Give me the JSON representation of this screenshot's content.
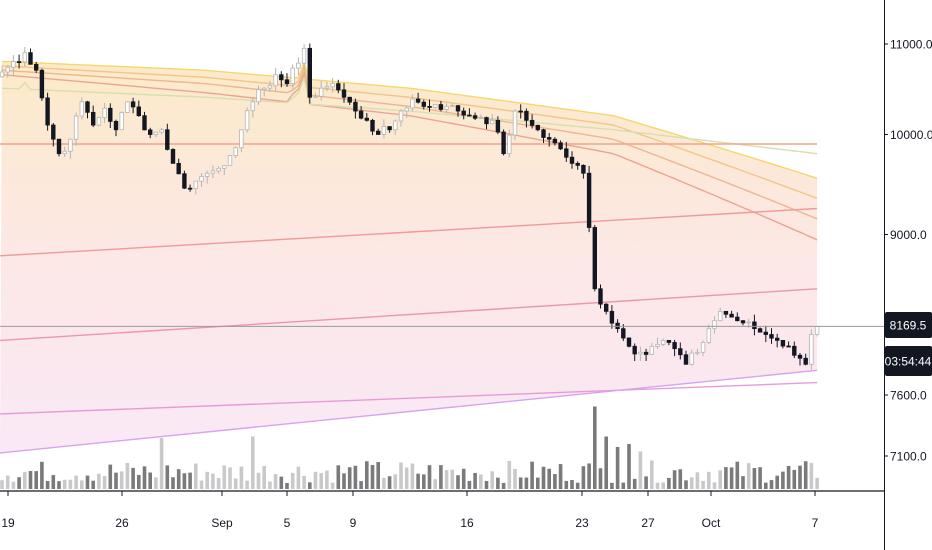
{
  "chart_data": {
    "type": "candlestick",
    "title": "",
    "y_axis": {
      "scale": "log",
      "range": [
        6500,
        12200
      ],
      "tick_labels": [
        "11000.0",
        "10000.0",
        "9000.0",
        "7600.0",
        "7100.0"
      ],
      "tick_values": [
        11000,
        10000,
        9000,
        7600,
        7100
      ]
    },
    "x_axis": {
      "tick_labels": [
        "19",
        "26",
        "Sep",
        "5",
        "9",
        "16",
        "23",
        "27",
        "Oct",
        "7"
      ]
    },
    "last_price": "8169.5",
    "countdown": "03:54:44",
    "anchors": [
      [
        0,
        10680
      ],
      [
        4,
        10900
      ],
      [
        6,
        10700
      ],
      [
        8,
        10100
      ],
      [
        10,
        9800
      ],
      [
        12,
        9950
      ],
      [
        14,
        10350
      ],
      [
        16,
        10100
      ],
      [
        18,
        10280
      ],
      [
        20,
        10050
      ],
      [
        22,
        10350
      ],
      [
        24,
        10200
      ],
      [
        26,
        10000
      ],
      [
        28,
        10050
      ],
      [
        30,
        9700
      ],
      [
        32,
        9450
      ],
      [
        34,
        9520
      ],
      [
        36,
        9600
      ],
      [
        38,
        9650
      ],
      [
        40,
        9780
      ],
      [
        42,
        10050
      ],
      [
        44,
        10350
      ],
      [
        46,
        10500
      ],
      [
        48,
        10650
      ],
      [
        50,
        10550
      ],
      [
        52,
        10780
      ],
      [
        53,
        10950
      ],
      [
        54,
        10400
      ],
      [
        56,
        10500
      ],
      [
        58,
        10550
      ],
      [
        60,
        10400
      ],
      [
        62,
        10250
      ],
      [
        64,
        10150
      ],
      [
        66,
        10000
      ],
      [
        68,
        10050
      ],
      [
        70,
        10250
      ],
      [
        72,
        10380
      ],
      [
        74,
        10300
      ],
      [
        76,
        10320
      ],
      [
        78,
        10300
      ],
      [
        80,
        10250
      ],
      [
        82,
        10200
      ],
      [
        84,
        10180
      ],
      [
        86,
        10150
      ],
      [
        88,
        9800
      ],
      [
        90,
        10250
      ],
      [
        92,
        10150
      ],
      [
        94,
        10050
      ],
      [
        96,
        9950
      ],
      [
        98,
        9850
      ],
      [
        100,
        9700
      ],
      [
        102,
        9600
      ],
      [
        104,
        8500
      ],
      [
        106,
        8300
      ],
      [
        108,
        8150
      ],
      [
        110,
        8000
      ],
      [
        112,
        7950
      ],
      [
        114,
        8000
      ],
      [
        116,
        8050
      ],
      [
        118,
        7980
      ],
      [
        120,
        7850
      ],
      [
        122,
        7950
      ],
      [
        124,
        8150
      ],
      [
        126,
        8300
      ],
      [
        128,
        8250
      ],
      [
        130,
        8200
      ],
      [
        132,
        8150
      ],
      [
        134,
        8100
      ],
      [
        136,
        8050
      ],
      [
        138,
        8000
      ],
      [
        140,
        7900
      ],
      [
        141,
        7850
      ],
      [
        142,
        8100
      ],
      [
        143,
        8169.5
      ]
    ],
    "volume_range": [
      0,
      6000
    ],
    "volume_spikes": [
      [
        28,
        3400
      ],
      [
        44,
        3500
      ],
      [
        104,
        5500
      ],
      [
        106,
        3500
      ],
      [
        108,
        2800
      ],
      [
        110,
        3000
      ],
      [
        112,
        2500
      ]
    ],
    "ribbon_ma": [
      {
        "base": [
          10800,
          10700,
          10500,
          10200,
          9550
        ],
        "color": "#f5d76e"
      },
      {
        "base": [
          10750,
          10620,
          10400,
          10100,
          9350
        ],
        "color": "#f2c58a"
      },
      {
        "base": [
          10700,
          10550,
          10300,
          9950,
          9150
        ],
        "color": "#eeb591"
      },
      {
        "base": [
          10650,
          10450,
          10200,
          9800,
          8950
        ],
        "color": "#eaa592"
      },
      {
        "base": [
          10500,
          10400,
          10250,
          10050,
          9800
        ],
        "color": "#d8dfae"
      }
    ],
    "long_ma": [
      {
        "start": 9900,
        "end": 9900,
        "color": "#f2a489"
      },
      {
        "start": 8800,
        "end": 9250,
        "color": "#f0989a"
      },
      {
        "start": 8050,
        "end": 8500,
        "color": "#ee94ad"
      },
      {
        "start": 7450,
        "end": 7700,
        "color": "#e89ad8"
      },
      {
        "start": 7150,
        "end": 7800,
        "color": "#d6a4ee"
      }
    ],
    "colors": {
      "candle_up": "#b5b5b5",
      "candle_down": "#131722",
      "volume_up": "#c9c9c9",
      "volume_down": "#7a7a7a",
      "price_tag_bg": "#131722",
      "price_line": "#9a9a9a"
    }
  }
}
